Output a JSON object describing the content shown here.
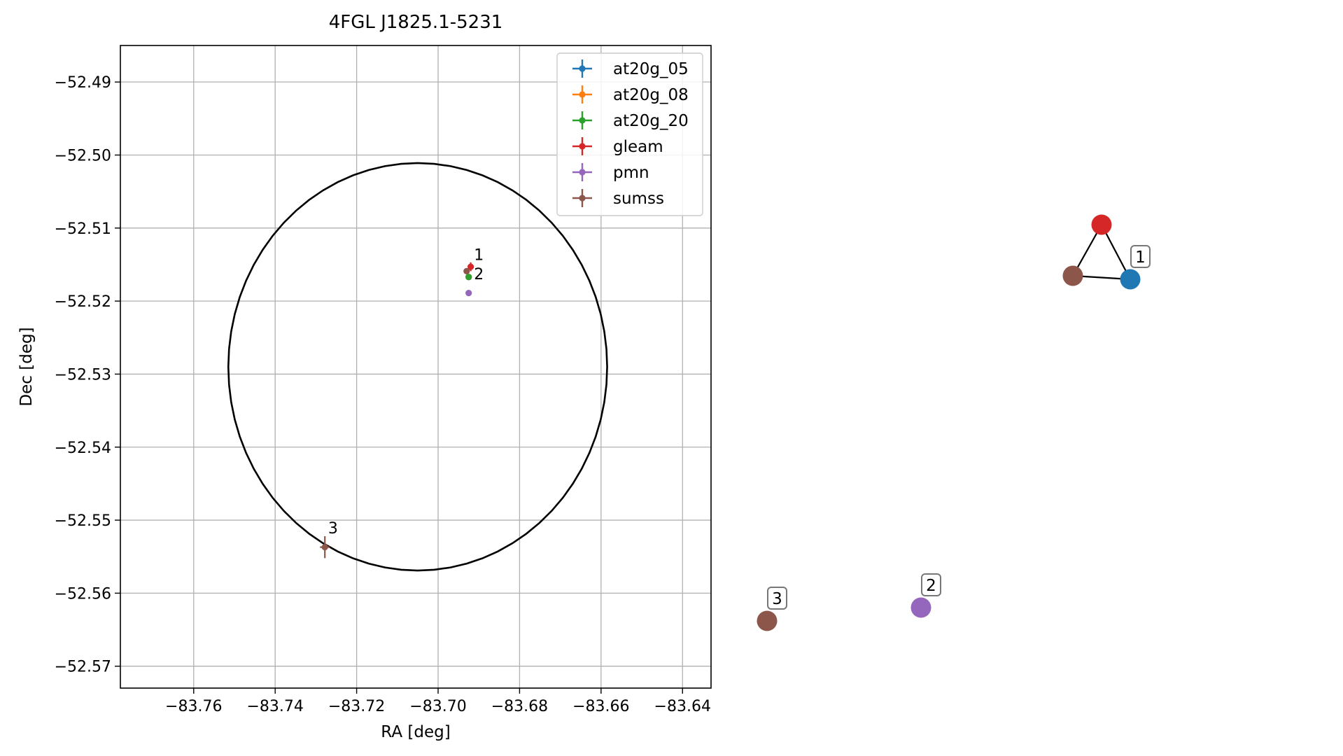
{
  "chart_data": [
    {
      "type": "scatter",
      "title": "4FGL J1825.1-5231",
      "xlabel": "RA [deg]",
      "ylabel": "Dec [deg]",
      "xlim": [
        -83.778,
        -83.633
      ],
      "ylim": [
        -52.573,
        -52.485
      ],
      "xticks": [
        -83.76,
        -83.74,
        -83.72,
        -83.7,
        -83.68,
        -83.66,
        -83.64
      ],
      "xtick_labels": [
        "−83.76",
        "−83.74",
        "−83.72",
        "−83.70",
        "−83.68",
        "−83.66",
        "−83.64"
      ],
      "yticks": [
        -52.49,
        -52.5,
        -52.51,
        -52.52,
        -52.53,
        -52.54,
        -52.55,
        -52.56,
        -52.57
      ],
      "ytick_labels": [
        "−52.49",
        "−52.50",
        "−52.51",
        "−52.52",
        "−52.53",
        "−52.54",
        "−52.55",
        "−52.56",
        "−52.57"
      ],
      "grid": true,
      "legend_position": "top-right",
      "error_ellipse": {
        "center": [
          -83.705,
          -52.529
        ],
        "semi_axis_ra": 0.0465,
        "semi_axis_dec": 0.0279,
        "color": "#000000"
      },
      "series": [
        {
          "name": "at20g_05",
          "color": "#1f77b4",
          "points": [
            {
              "x": -83.6925,
              "y": -52.5167
            }
          ]
        },
        {
          "name": "at20g_08",
          "color": "#ff7f0e",
          "points": [
            {
              "x": -83.6925,
              "y": -52.5167
            }
          ]
        },
        {
          "name": "at20g_20",
          "color": "#2ca02c",
          "points": [
            {
              "x": -83.6925,
              "y": -52.5167
            }
          ]
        },
        {
          "name": "gleam",
          "color": "#d62728",
          "points": [
            {
              "x": -83.692,
              "y": -52.5153,
              "yerr": 0.0006
            }
          ]
        },
        {
          "name": "pmn",
          "color": "#9467bd",
          "points": [
            {
              "x": -83.6925,
              "y": -52.5189
            }
          ]
        },
        {
          "name": "sumss",
          "color": "#8c564b",
          "points": [
            {
              "x": -83.693,
              "y": -52.5159
            },
            {
              "x": -83.7278,
              "y": -52.5537,
              "xerr": 0.0012,
              "yerr": 0.0015
            }
          ]
        }
      ],
      "annotations": [
        {
          "text": "1",
          "x": -83.6912,
          "y": -52.5144
        },
        {
          "text": "2",
          "x": -83.6912,
          "y": -52.517
        },
        {
          "text": "3",
          "x": -83.727,
          "y": -52.5518
        }
      ]
    },
    {
      "type": "network",
      "nodes": [
        {
          "id": "gleam",
          "color": "#d62728"
        },
        {
          "id": "sumss",
          "color": "#8c564b"
        },
        {
          "id": "at20g",
          "color": "#1f77b4",
          "label": "1"
        },
        {
          "id": "pmn",
          "color": "#9467bd",
          "label": "2"
        },
        {
          "id": "sumss_2",
          "color": "#8c564b",
          "label": "3"
        }
      ],
      "edges": [
        [
          "gleam",
          "sumss"
        ],
        [
          "gleam",
          "at20g"
        ],
        [
          "sumss",
          "at20g"
        ]
      ]
    }
  ]
}
